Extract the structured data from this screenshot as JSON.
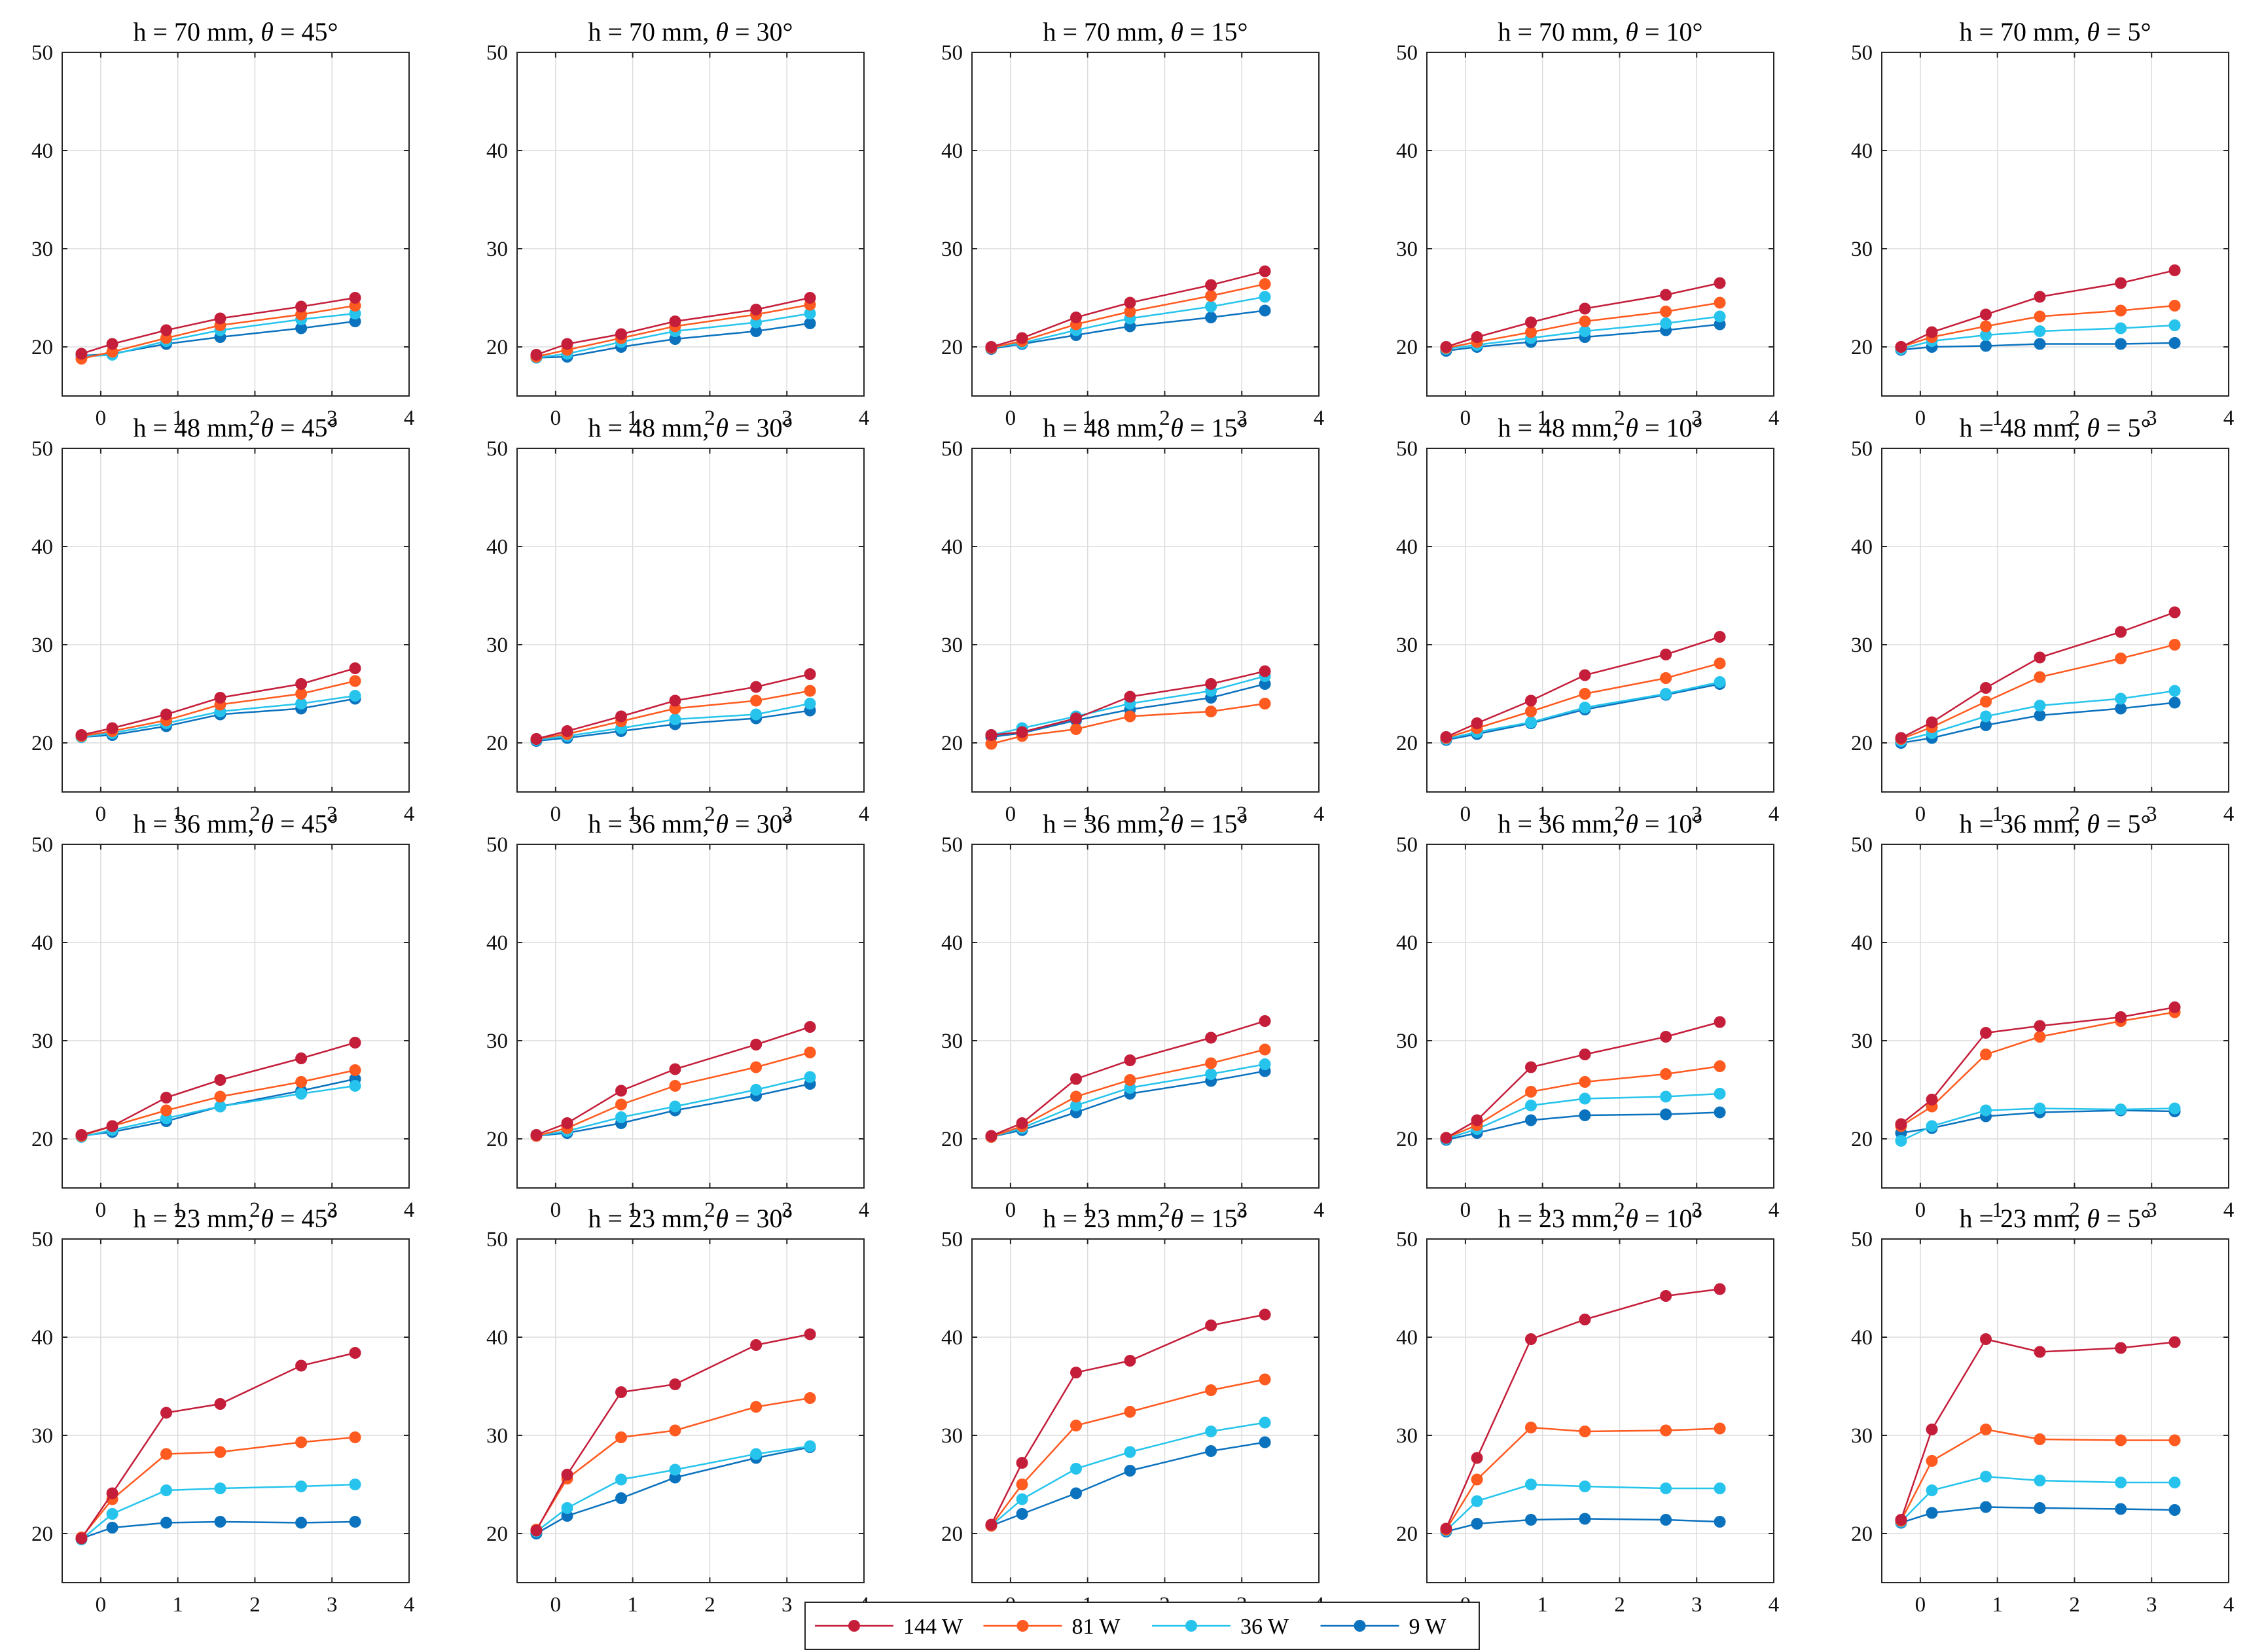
{
  "chart_data": {
    "type": "line",
    "layout": "4 rows x 5 columns of line plots",
    "x": [
      -0.25,
      0.15,
      0.85,
      1.55,
      2.6,
      3.3
    ],
    "xlim": [
      -0.5,
      4
    ],
    "ylim": [
      15,
      50
    ],
    "xticks": [
      0,
      1,
      2,
      3,
      4
    ],
    "yticks": [
      20,
      30,
      40,
      50
    ],
    "xtick_labels": [
      "0",
      "1",
      "2",
      "3",
      "4"
    ],
    "ytick_labels": [
      "20",
      "30",
      "40",
      "50"
    ],
    "grid": true,
    "series_names": [
      "144 W",
      "81 W",
      "36 W",
      "9 W"
    ],
    "series_colors": [
      "#c41e3a",
      "#ff5a1f",
      "#26c4ec",
      "#0b72be"
    ],
    "legend_position": "bottom-center",
    "panels": [
      {
        "h": "70",
        "theta": "45",
        "title_prefix": "h = 70 mm, ",
        "title_suffix": " = 45°",
        "series": [
          [
            19.3,
            20.3,
            21.7,
            22.9,
            24.1,
            25.0
          ],
          [
            18.8,
            19.5,
            20.9,
            22.2,
            23.3,
            24.2
          ],
          [
            19.0,
            19.2,
            20.6,
            21.7,
            22.8,
            23.4
          ],
          [
            19.1,
            19.3,
            20.3,
            21.0,
            21.9,
            22.6
          ]
        ]
      },
      {
        "h": "70",
        "theta": "30",
        "title_prefix": "h = 70 mm, ",
        "title_suffix": " = 30°",
        "series": [
          [
            19.2,
            20.3,
            21.3,
            22.6,
            23.8,
            25.0
          ],
          [
            19.0,
            19.7,
            20.9,
            22.1,
            23.3,
            24.3
          ],
          [
            18.9,
            19.3,
            20.5,
            21.6,
            22.5,
            23.4
          ],
          [
            18.9,
            19.0,
            20.0,
            20.8,
            21.6,
            22.4
          ]
        ]
      },
      {
        "h": "70",
        "theta": "15",
        "title_prefix": "h = 70 mm, ",
        "title_suffix": " = 15°",
        "series": [
          [
            20.0,
            20.9,
            23.0,
            24.5,
            26.3,
            27.7
          ],
          [
            19.9,
            20.6,
            22.3,
            23.6,
            25.2,
            26.4
          ],
          [
            19.9,
            20.4,
            21.7,
            22.9,
            24.1,
            25.1
          ],
          [
            19.8,
            20.3,
            21.2,
            22.1,
            23.0,
            23.7
          ]
        ]
      },
      {
        "h": "70",
        "theta": "10",
        "title_prefix": "h = 70 mm, ",
        "title_suffix": " = 10°",
        "series": [
          [
            20.0,
            21.0,
            22.5,
            23.9,
            25.3,
            26.5
          ],
          [
            19.9,
            20.5,
            21.5,
            22.6,
            23.6,
            24.5
          ],
          [
            19.8,
            20.2,
            20.9,
            21.6,
            22.4,
            23.1
          ],
          [
            19.6,
            20.0,
            20.5,
            21.0,
            21.7,
            22.3
          ]
        ]
      },
      {
        "h": "70",
        "theta": "5",
        "title_prefix": "h = 70 mm, ",
        "title_suffix": " = 5°",
        "series": [
          [
            20.0,
            21.5,
            23.3,
            25.1,
            26.5,
            27.8
          ],
          [
            20.0,
            21.0,
            22.1,
            23.1,
            23.7,
            24.2
          ],
          [
            19.8,
            20.6,
            21.2,
            21.6,
            21.9,
            22.2
          ],
          [
            19.7,
            20.0,
            20.1,
            20.3,
            20.3,
            20.4
          ]
        ]
      },
      {
        "h": "48",
        "theta": "45",
        "title_prefix": "h = 48 mm, ",
        "title_suffix": " = 45°",
        "series": [
          [
            20.8,
            21.5,
            22.9,
            24.6,
            26.0,
            27.6
          ],
          [
            20.7,
            21.2,
            22.3,
            23.9,
            25.0,
            26.3
          ],
          [
            20.6,
            21.0,
            22.0,
            23.2,
            24.0,
            24.8
          ],
          [
            20.6,
            20.8,
            21.7,
            22.9,
            23.5,
            24.5
          ]
        ]
      },
      {
        "h": "48",
        "theta": "30",
        "title_prefix": "h = 48 mm, ",
        "title_suffix": " = 30°",
        "series": [
          [
            20.4,
            21.2,
            22.7,
            24.3,
            25.7,
            27.0
          ],
          [
            20.4,
            20.9,
            22.2,
            23.5,
            24.3,
            25.3
          ],
          [
            20.3,
            20.7,
            21.5,
            22.4,
            22.9,
            24.0
          ],
          [
            20.2,
            20.5,
            21.2,
            21.9,
            22.5,
            23.3
          ]
        ]
      },
      {
        "h": "48",
        "theta": "15",
        "title_prefix": "h = 48 mm, ",
        "title_suffix": " = 15°",
        "series": [
          [
            20.8,
            21.1,
            22.5,
            24.7,
            26.0,
            27.3
          ],
          [
            19.9,
            20.7,
            21.4,
            22.7,
            23.2,
            24.0
          ],
          [
            20.8,
            21.5,
            22.7,
            24.0,
            25.3,
            26.8
          ],
          [
            20.6,
            21.0,
            22.3,
            23.4,
            24.6,
            26.0
          ]
        ]
      },
      {
        "h": "48",
        "theta": "10",
        "title_prefix": "h = 48 mm, ",
        "title_suffix": " = 10°",
        "series": [
          [
            20.6,
            22.0,
            24.3,
            26.9,
            29.0,
            30.8
          ],
          [
            20.5,
            21.5,
            23.2,
            25.0,
            26.6,
            28.1
          ],
          [
            20.4,
            21.1,
            22.1,
            23.6,
            25.0,
            26.2
          ],
          [
            20.3,
            20.9,
            22.0,
            23.4,
            24.9,
            26.0
          ]
        ]
      },
      {
        "h": "48",
        "theta": "5",
        "title_prefix": "h = 48 mm, ",
        "title_suffix": " = 5°",
        "series": [
          [
            20.5,
            22.1,
            25.6,
            28.7,
            31.3,
            33.3
          ],
          [
            20.4,
            21.6,
            24.2,
            26.7,
            28.6,
            30.0
          ],
          [
            20.2,
            21.0,
            22.7,
            23.8,
            24.5,
            25.3
          ],
          [
            20.0,
            20.5,
            21.8,
            22.8,
            23.5,
            24.1
          ]
        ]
      },
      {
        "h": "36",
        "theta": "45",
        "title_prefix": "h = 36 mm, ",
        "title_suffix": " = 45°",
        "series": [
          [
            20.4,
            21.3,
            24.2,
            26.0,
            28.2,
            29.8
          ],
          [
            20.3,
            21.3,
            22.9,
            24.3,
            25.8,
            27.0
          ],
          [
            20.2,
            20.9,
            22.1,
            23.3,
            24.6,
            25.4
          ],
          [
            20.3,
            20.7,
            21.8,
            23.3,
            24.9,
            26.1
          ]
        ]
      },
      {
        "h": "36",
        "theta": "30",
        "title_prefix": "h = 36 mm, ",
        "title_suffix": " = 30°",
        "series": [
          [
            20.4,
            21.6,
            24.9,
            27.1,
            29.6,
            31.4
          ],
          [
            20.3,
            21.1,
            23.5,
            25.4,
            27.3,
            28.8
          ],
          [
            20.3,
            20.8,
            22.2,
            23.3,
            25.0,
            26.3
          ],
          [
            20.3,
            20.6,
            21.6,
            22.9,
            24.4,
            25.6
          ]
        ]
      },
      {
        "h": "36",
        "theta": "15",
        "title_prefix": "h = 36 mm, ",
        "title_suffix": " = 15°",
        "series": [
          [
            20.3,
            21.6,
            26.1,
            28.0,
            30.3,
            32.0
          ],
          [
            20.2,
            21.3,
            24.3,
            26.0,
            27.7,
            29.1
          ],
          [
            20.2,
            21.1,
            23.4,
            25.2,
            26.6,
            27.6
          ],
          [
            20.2,
            20.9,
            22.7,
            24.6,
            25.9,
            26.9
          ]
        ]
      },
      {
        "h": "36",
        "theta": "10",
        "title_prefix": "h = 36 mm, ",
        "title_suffix": " = 10°",
        "series": [
          [
            20.1,
            21.9,
            27.3,
            28.6,
            30.4,
            31.9
          ],
          [
            20.1,
            21.4,
            24.8,
            25.8,
            26.6,
            27.4
          ],
          [
            20.0,
            21.0,
            23.4,
            24.1,
            24.3,
            24.6
          ],
          [
            19.9,
            20.6,
            21.9,
            22.4,
            22.5,
            22.7
          ]
        ]
      },
      {
        "h": "36",
        "theta": "5",
        "title_prefix": "h = 36 mm, ",
        "title_suffix": " = 5°",
        "series": [
          [
            21.5,
            24.0,
            30.8,
            31.5,
            32.4,
            33.4
          ],
          [
            21.3,
            23.3,
            28.6,
            30.4,
            32.0,
            32.9
          ],
          [
            19.8,
            21.3,
            22.9,
            23.1,
            23.0,
            23.1
          ],
          [
            20.6,
            21.1,
            22.3,
            22.7,
            22.9,
            22.8
          ]
        ]
      },
      {
        "h": "23",
        "theta": "45",
        "title_prefix": "h = 23 mm, ",
        "title_suffix": " = 45°",
        "series": [
          [
            19.5,
            24.1,
            32.3,
            33.2,
            37.1,
            38.4
          ],
          [
            19.6,
            23.5,
            28.1,
            28.3,
            29.3,
            29.8
          ],
          [
            19.4,
            22.0,
            24.4,
            24.6,
            24.8,
            25.0
          ],
          [
            19.5,
            20.6,
            21.1,
            21.2,
            21.1,
            21.2
          ]
        ]
      },
      {
        "h": "23",
        "theta": "30",
        "title_prefix": "h = 23 mm, ",
        "title_suffix": " = 30°",
        "series": [
          [
            20.3,
            26.0,
            34.4,
            35.2,
            39.2,
            40.3
          ],
          [
            20.4,
            25.6,
            29.8,
            30.5,
            32.9,
            33.8
          ],
          [
            20.2,
            22.6,
            25.5,
            26.5,
            28.1,
            28.9
          ],
          [
            20.0,
            21.8,
            23.6,
            25.7,
            27.7,
            28.8
          ]
        ]
      },
      {
        "h": "23",
        "theta": "15",
        "title_prefix": "h = 23 mm, ",
        "title_suffix": " = 15°",
        "series": [
          [
            20.9,
            27.2,
            36.4,
            37.6,
            41.2,
            42.3
          ],
          [
            20.8,
            25.0,
            31.0,
            32.4,
            34.6,
            35.7
          ],
          [
            20.8,
            23.5,
            26.6,
            28.3,
            30.4,
            31.3
          ],
          [
            20.8,
            22.0,
            24.1,
            26.4,
            28.4,
            29.3
          ]
        ]
      },
      {
        "h": "23",
        "theta": "10",
        "title_prefix": "h = 23 mm, ",
        "title_suffix": " = 10°",
        "series": [
          [
            20.5,
            27.7,
            39.8,
            41.8,
            44.2,
            44.9
          ],
          [
            20.4,
            25.5,
            30.8,
            30.4,
            30.5,
            30.7
          ],
          [
            20.3,
            23.3,
            25.0,
            24.8,
            24.6,
            24.6
          ],
          [
            20.2,
            21.0,
            21.4,
            21.5,
            21.4,
            21.2
          ]
        ]
      },
      {
        "h": "23",
        "theta": "5",
        "title_prefix": "h = 23 mm, ",
        "title_suffix": " = 5°",
        "series": [
          [
            21.4,
            30.6,
            39.8,
            38.5,
            38.9,
            39.5
          ],
          [
            21.3,
            27.4,
            30.6,
            29.6,
            29.5,
            29.5
          ],
          [
            21.2,
            24.4,
            25.8,
            25.4,
            25.2,
            25.2
          ],
          [
            21.1,
            22.1,
            22.7,
            22.6,
            22.5,
            22.4
          ]
        ]
      }
    ]
  }
}
